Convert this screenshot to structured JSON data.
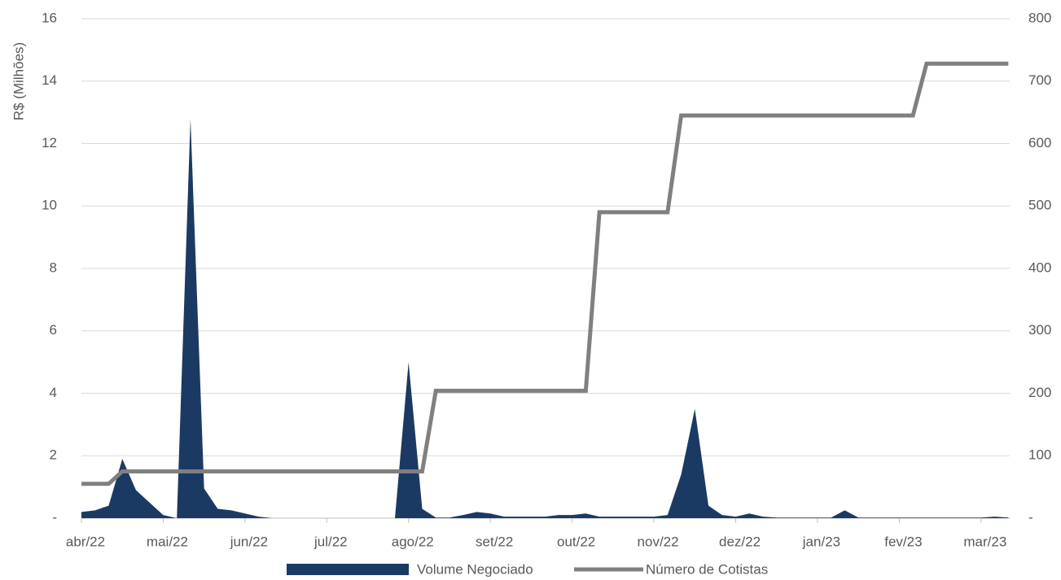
{
  "chart_data": {
    "type": "area-line",
    "y_label": "R$ (Milhões)",
    "categories": [
      "abr/22",
      null,
      null,
      null,
      null,
      null,
      "mai/22",
      null,
      null,
      null,
      null,
      null,
      "jun/22",
      null,
      null,
      null,
      null,
      null,
      "jul/22",
      null,
      null,
      null,
      null,
      null,
      "ago/22",
      null,
      null,
      null,
      null,
      null,
      "set/22",
      null,
      null,
      null,
      null,
      null,
      "out/22",
      null,
      null,
      null,
      null,
      null,
      "nov/22",
      null,
      null,
      null,
      null,
      null,
      "dez/22",
      null,
      null,
      null,
      null,
      null,
      "jan/23",
      null,
      null,
      null,
      null,
      null,
      "fev/23",
      null,
      null,
      null,
      null,
      null,
      "mar/23",
      null,
      null
    ],
    "series": [
      {
        "name": "Volume Negociado",
        "kind": "area",
        "color": "#1b3a63",
        "values": [
          0.2,
          0.25,
          0.4,
          1.9,
          0.9,
          0.5,
          0.1,
          0,
          12.8,
          0.95,
          0.3,
          0.25,
          0.15,
          0.05,
          0,
          0,
          0,
          0,
          0,
          0,
          0,
          0,
          0,
          0,
          5.0,
          0.3,
          0.02,
          0.02,
          0.1,
          0.2,
          0.15,
          0.05,
          0.05,
          0.05,
          0.05,
          0.1,
          0.1,
          0.15,
          0.05,
          0.05,
          0.05,
          0.05,
          0.05,
          0.1,
          1.4,
          3.5,
          0.4,
          0.1,
          0.05,
          0.15,
          0.05,
          0.02,
          0.02,
          0.02,
          0.02,
          0.02,
          0.25,
          0.02,
          0.02,
          0.02,
          0.02,
          0.02,
          0.02,
          0.02,
          0.02,
          0.02,
          0.02,
          0.05,
          0.02
        ]
      },
      {
        "name": "Número de Cotistas",
        "kind": "line",
        "axis": "y2",
        "color": "#808080",
        "values": [
          55,
          55,
          55,
          75,
          75,
          75,
          75,
          75,
          75,
          75,
          75,
          75,
          75,
          75,
          75,
          75,
          75,
          75,
          75,
          75,
          75,
          75,
          75,
          75,
          75,
          75,
          204,
          204,
          204,
          204,
          204,
          204,
          204,
          204,
          204,
          204,
          204,
          204,
          490,
          490,
          490,
          490,
          490,
          490,
          645,
          645,
          645,
          645,
          645,
          645,
          645,
          645,
          645,
          645,
          645,
          645,
          645,
          645,
          645,
          645,
          645,
          645,
          728,
          728,
          728,
          728,
          728,
          728,
          728
        ]
      }
    ],
    "ylim": [
      0,
      16
    ],
    "yticks": [
      {
        "value": 0,
        "label": "-"
      },
      2,
      4,
      6,
      8,
      10,
      12,
      14,
      16
    ],
    "y2lim": [
      0,
      800
    ],
    "y2ticks": [
      {
        "value": 0,
        "label": "-"
      },
      100,
      200,
      300,
      400,
      500,
      600,
      700,
      800
    ],
    "grid": true,
    "legend": "bottom"
  }
}
